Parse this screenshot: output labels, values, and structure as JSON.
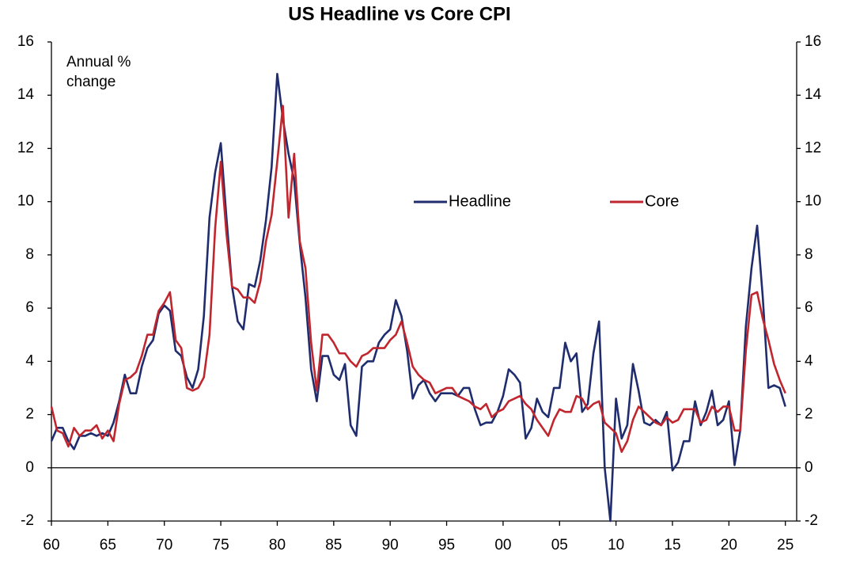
{
  "chart_data": {
    "type": "line",
    "title": "US Headline vs Core CPI",
    "annotation": "Annual % change",
    "x": [
      1960,
      1960.5,
      1961,
      1961.5,
      1962,
      1962.5,
      1963,
      1963.5,
      1964,
      1964.5,
      1965,
      1965.5,
      1966,
      1966.5,
      1967,
      1967.5,
      1968,
      1968.5,
      1969,
      1969.5,
      1970,
      1970.5,
      1971,
      1971.5,
      1972,
      1972.5,
      1973,
      1973.5,
      1974,
      1974.5,
      1975,
      1975.5,
      1976,
      1976.5,
      1977,
      1977.5,
      1978,
      1978.5,
      1979,
      1979.5,
      1980,
      1980.5,
      1981,
      1981.5,
      1982,
      1982.5,
      1983,
      1983.5,
      1984,
      1984.5,
      1985,
      1985.5,
      1986,
      1986.5,
      1987,
      1987.5,
      1988,
      1988.5,
      1989,
      1989.5,
      1990,
      1990.5,
      1991,
      1991.5,
      1992,
      1992.5,
      1993,
      1993.5,
      1994,
      1994.5,
      1995,
      1995.5,
      1996,
      1996.5,
      1997,
      1997.5,
      1998,
      1998.5,
      1999,
      1999.5,
      2000,
      2000.5,
      2001,
      2001.5,
      2002,
      2002.5,
      2003,
      2003.5,
      2004,
      2004.5,
      2005,
      2005.5,
      2006,
      2006.5,
      2007,
      2007.5,
      2008,
      2008.5,
      2009,
      2009.5,
      2010,
      2010.5,
      2011,
      2011.5,
      2012,
      2012.5,
      2013,
      2013.5,
      2014,
      2014.5,
      2015,
      2015.5,
      2016,
      2016.5,
      2017,
      2017.5,
      2018,
      2018.5,
      2019,
      2019.5,
      2020,
      2020.5,
      2021,
      2021.5,
      2022,
      2022.5,
      2023,
      2023.5,
      2024,
      2024.5,
      2025
    ],
    "series": [
      {
        "name": "Headline",
        "color": "#1f2d6e",
        "values": [
          1.0,
          1.5,
          1.5,
          1.0,
          0.7,
          1.2,
          1.2,
          1.3,
          1.2,
          1.3,
          1.2,
          1.7,
          2.5,
          3.5,
          2.8,
          2.8,
          3.8,
          4.5,
          4.8,
          5.8,
          6.1,
          5.9,
          4.4,
          4.2,
          3.4,
          3.0,
          3.7,
          5.7,
          9.4,
          11.1,
          12.2,
          9.4,
          6.8,
          5.5,
          5.2,
          6.9,
          6.8,
          7.8,
          9.3,
          11.3,
          14.8,
          13.1,
          11.8,
          10.8,
          8.4,
          6.4,
          3.7,
          2.5,
          4.2,
          4.2,
          3.5,
          3.3,
          3.9,
          1.6,
          1.2,
          3.8,
          4.0,
          4.0,
          4.7,
          5.0,
          5.2,
          6.3,
          5.7,
          4.4,
          2.6,
          3.1,
          3.3,
          2.8,
          2.5,
          2.8,
          2.8,
          2.8,
          2.7,
          3.0,
          3.0,
          2.2,
          1.6,
          1.7,
          1.7,
          2.1,
          2.7,
          3.7,
          3.5,
          3.2,
          1.1,
          1.5,
          2.6,
          2.1,
          1.9,
          3.0,
          3.0,
          4.7,
          4.0,
          4.3,
          2.1,
          2.4,
          4.3,
          5.5,
          0.0,
          -2.0,
          2.6,
          1.1,
          1.6,
          3.9,
          2.9,
          1.7,
          1.6,
          1.8,
          1.6,
          2.1,
          -0.1,
          0.2,
          1.0,
          1.0,
          2.5,
          1.6,
          2.1,
          2.9,
          1.6,
          1.8,
          2.5,
          0.1,
          1.4,
          5.3,
          7.5,
          9.1,
          6.4,
          3.0,
          3.1,
          3.0,
          2.3
        ]
      },
      {
        "name": "Core",
        "color": "#c0262d",
        "values": [
          2.3,
          1.4,
          1.3,
          0.8,
          1.5,
          1.2,
          1.4,
          1.4,
          1.6,
          1.1,
          1.4,
          1.0,
          2.4,
          3.3,
          3.4,
          3.6,
          4.2,
          5.0,
          5.0,
          5.9,
          6.2,
          6.6,
          4.8,
          4.5,
          3.0,
          2.9,
          3.0,
          3.4,
          5.0,
          9.0,
          11.5,
          8.8,
          6.8,
          6.7,
          6.4,
          6.4,
          6.2,
          7.0,
          8.5,
          9.5,
          11.5,
          13.6,
          9.4,
          11.8,
          8.5,
          7.5,
          4.7,
          2.9,
          5.0,
          5.0,
          4.7,
          4.3,
          4.3,
          4.0,
          3.8,
          4.2,
          4.3,
          4.5,
          4.5,
          4.5,
          4.8,
          5.0,
          5.5,
          4.7,
          3.8,
          3.5,
          3.3,
          3.2,
          2.8,
          2.9,
          3.0,
          3.0,
          2.7,
          2.6,
          2.5,
          2.3,
          2.2,
          2.4,
          1.9,
          2.1,
          2.2,
          2.5,
          2.6,
          2.7,
          2.4,
          2.2,
          1.8,
          1.5,
          1.2,
          1.8,
          2.2,
          2.1,
          2.1,
          2.7,
          2.6,
          2.2,
          2.4,
          2.5,
          1.7,
          1.5,
          1.3,
          0.6,
          1.0,
          1.8,
          2.3,
          2.1,
          1.9,
          1.7,
          1.6,
          1.9,
          1.7,
          1.8,
          2.2,
          2.2,
          2.2,
          1.7,
          1.8,
          2.3,
          2.1,
          2.3,
          2.3,
          1.4,
          1.4,
          4.4,
          6.5,
          6.6,
          5.6,
          4.8,
          3.9,
          3.3,
          2.8
        ]
      }
    ],
    "xlim": [
      1960,
      2026
    ],
    "xticks": [
      {
        "value": 1960,
        "label": "60"
      },
      {
        "value": 1965,
        "label": "65"
      },
      {
        "value": 1970,
        "label": "70"
      },
      {
        "value": 1975,
        "label": "75"
      },
      {
        "value": 1980,
        "label": "80"
      },
      {
        "value": 1985,
        "label": "85"
      },
      {
        "value": 1990,
        "label": "90"
      },
      {
        "value": 1995,
        "label": "95"
      },
      {
        "value": 2000,
        "label": "00"
      },
      {
        "value": 2005,
        "label": "05"
      },
      {
        "value": 2010,
        "label": "10"
      },
      {
        "value": 2015,
        "label": "15"
      },
      {
        "value": 2020,
        "label": "20"
      },
      {
        "value": 2025,
        "label": "25"
      }
    ],
    "ylim": [
      -2,
      16
    ],
    "yticks": [
      -2,
      0,
      2,
      4,
      6,
      8,
      10,
      12,
      14,
      16
    ],
    "y2lim": [
      -2,
      16
    ],
    "y2ticks": [
      -2,
      0,
      2,
      4,
      6,
      8,
      10,
      12,
      14,
      16
    ],
    "grid": false,
    "legend": "center"
  }
}
